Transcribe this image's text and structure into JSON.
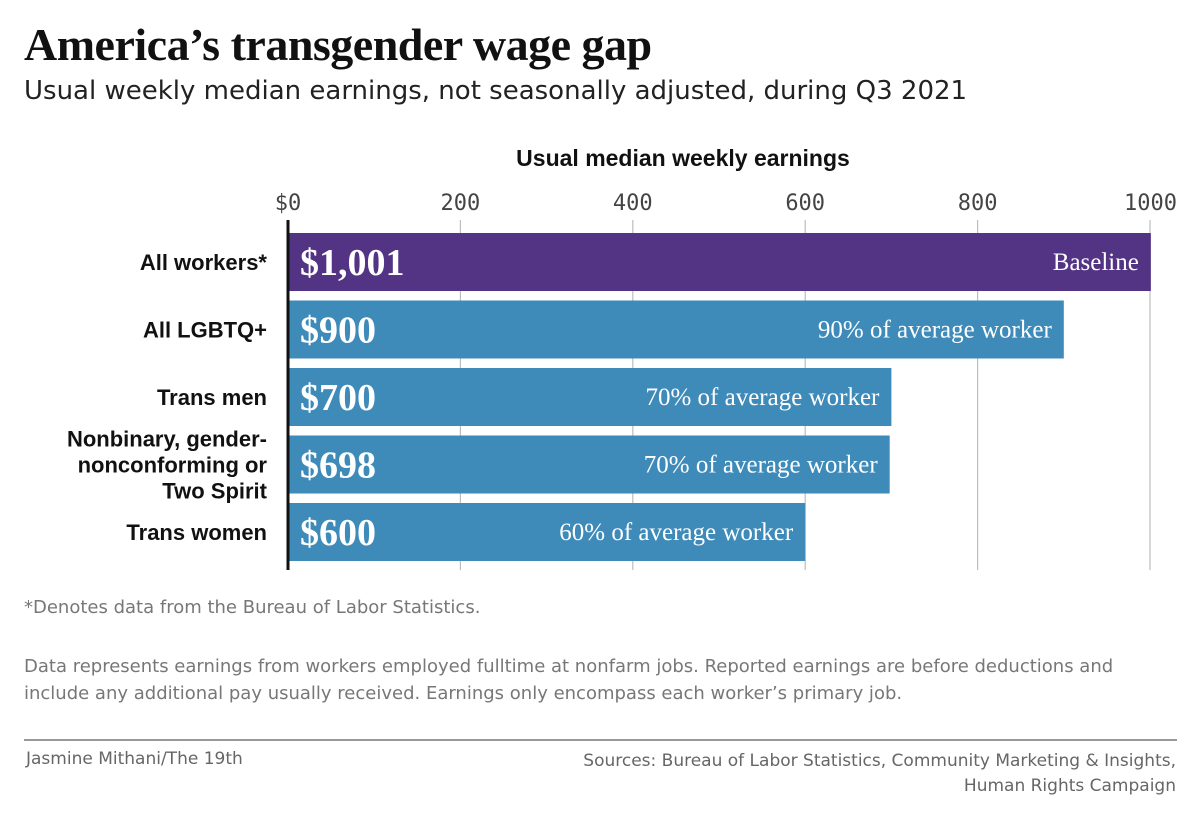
{
  "title": "America’s transgender wage gap",
  "subtitle": "Usual weekly median earnings, not seasonally adjusted, during Q3 2021",
  "chart_data": {
    "type": "bar",
    "orientation": "horizontal",
    "xlabel": "Usual median weekly earnings",
    "ylabel": "",
    "xlim": [
      0,
      1000
    ],
    "ticks": [
      {
        "value": 0,
        "label": "$0"
      },
      {
        "value": 200,
        "label": "200"
      },
      {
        "value": 400,
        "label": "400"
      },
      {
        "value": 600,
        "label": "600"
      },
      {
        "value": 800,
        "label": "800"
      },
      {
        "value": 1000,
        "label": "1000"
      }
    ],
    "grid": true,
    "legend": "none",
    "colors": {
      "baseline": "#523384",
      "group": "#3e8bba"
    },
    "categories": [
      {
        "label": [
          "All workers*"
        ],
        "value": 1001,
        "value_label": "$1,001",
        "note": "Baseline",
        "color": "#523384"
      },
      {
        "label": [
          "All LGBTQ+"
        ],
        "value": 900,
        "value_label": "$900",
        "note": "90% of average worker",
        "color": "#3e8bba"
      },
      {
        "label": [
          "Trans men"
        ],
        "value": 700,
        "value_label": "$700",
        "note": "70% of average worker",
        "color": "#3e8bba"
      },
      {
        "label": [
          "Nonbinary, gender-",
          "nonconforming or",
          "Two Spirit"
        ],
        "value": 698,
        "value_label": "$698",
        "note": "70% of average worker",
        "color": "#3e8bba"
      },
      {
        "label": [
          "Trans women"
        ],
        "value": 600,
        "value_label": "$600",
        "note": "60% of average worker",
        "color": "#3e8bba"
      }
    ]
  },
  "footnote": "*Denotes data from the Bureau of Labor Statistics.",
  "description": "Data represents earnings from workers employed fulltime at nonfarm jobs. Reported earnings are before deductions and include any additional pay usually received. Earnings only encompass each worker’s primary job.",
  "credit": "Jasmine Mithani/The 19th",
  "sources": [
    "Sources: Bureau of Labor Statistics, Community Marketing & Insights,",
    "Human Rights Campaign"
  ]
}
